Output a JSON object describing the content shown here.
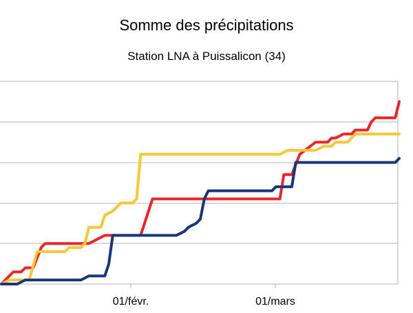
{
  "chart_data": {
    "type": "line",
    "title": "Somme des précipitations",
    "subtitle": "Station LNA à Puissalicon (34)",
    "xlabel": "",
    "ylabel": "",
    "x_ticks": [
      "01/févr.",
      "01/mars"
    ],
    "grid": true,
    "legend": "none",
    "series": [
      {
        "color": "#e8272a",
        "points": [
          [
            0,
            0
          ],
          [
            2,
            2
          ],
          [
            3,
            3
          ],
          [
            5,
            3
          ],
          [
            6,
            4
          ],
          [
            8,
            4
          ],
          [
            10,
            9
          ],
          [
            11,
            10
          ],
          [
            22,
            10
          ],
          [
            24,
            11
          ],
          [
            26,
            12
          ],
          [
            35,
            12
          ],
          [
            38,
            21
          ],
          [
            52,
            21
          ],
          [
            63,
            21
          ],
          [
            66,
            21
          ],
          [
            70,
            21
          ],
          [
            71,
            27
          ],
          [
            73,
            27
          ],
          [
            75,
            32
          ],
          [
            79,
            35
          ],
          [
            82,
            35
          ],
          [
            83,
            36
          ],
          [
            84,
            36
          ],
          [
            86,
            37
          ],
          [
            88,
            37
          ],
          [
            89,
            38
          ],
          [
            92,
            38
          ],
          [
            93,
            40
          ],
          [
            94,
            41
          ],
          [
            96,
            41
          ],
          [
            98,
            41
          ],
          [
            99,
            41
          ],
          [
            100,
            45
          ]
        ]
      },
      {
        "color": "#f7c738",
        "points": [
          [
            0,
            0
          ],
          [
            2,
            1
          ],
          [
            5,
            1
          ],
          [
            7,
            1
          ],
          [
            9,
            8
          ],
          [
            16,
            8
          ],
          [
            17,
            9
          ],
          [
            20,
            9
          ],
          [
            21,
            10
          ],
          [
            22,
            14
          ],
          [
            25,
            14
          ],
          [
            26,
            17
          ],
          [
            28,
            18
          ],
          [
            29,
            19
          ],
          [
            30,
            20
          ],
          [
            33,
            20
          ],
          [
            34,
            21
          ],
          [
            35,
            32
          ],
          [
            39,
            32
          ],
          [
            44,
            32
          ],
          [
            52,
            32
          ],
          [
            65,
            32
          ],
          [
            70,
            32
          ],
          [
            72,
            33
          ],
          [
            79,
            33
          ],
          [
            81,
            34
          ],
          [
            83,
            34
          ],
          [
            84,
            35
          ],
          [
            87,
            35
          ],
          [
            88,
            36
          ],
          [
            89,
            37
          ],
          [
            94,
            37
          ],
          [
            100,
            37
          ]
        ]
      },
      {
        "color": "#19367c",
        "points": [
          [
            0,
            0
          ],
          [
            4,
            0
          ],
          [
            6,
            1
          ],
          [
            20,
            1
          ],
          [
            22,
            2
          ],
          [
            26,
            2
          ],
          [
            27,
            5
          ],
          [
            28,
            12
          ],
          [
            36,
            12
          ],
          [
            40,
            12
          ],
          [
            44,
            12
          ],
          [
            46,
            13
          ],
          [
            47,
            14
          ],
          [
            49,
            15
          ],
          [
            50,
            16
          ],
          [
            51,
            21
          ],
          [
            52,
            23
          ],
          [
            60,
            23
          ],
          [
            68,
            23
          ],
          [
            69,
            24
          ],
          [
            73,
            24
          ],
          [
            74,
            30
          ],
          [
            84,
            30
          ],
          [
            86,
            30
          ],
          [
            98,
            30
          ],
          [
            99,
            30
          ],
          [
            100,
            31
          ]
        ]
      }
    ]
  }
}
